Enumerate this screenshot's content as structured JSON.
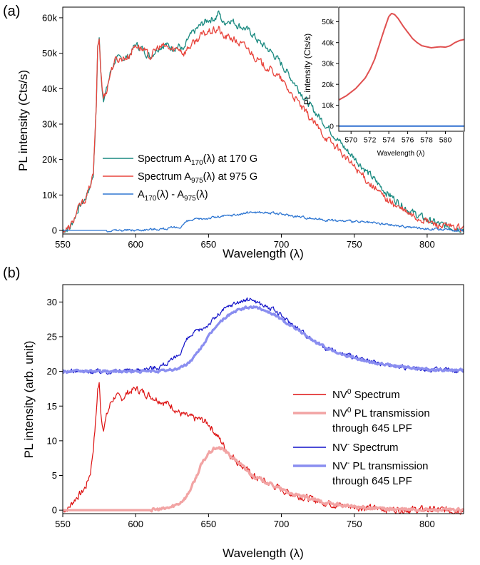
{
  "panels": {
    "a": {
      "label": "(a)"
    },
    "b": {
      "label": "(b)"
    }
  },
  "colors": {
    "teal": "#1a8a80",
    "red": "#e8443c",
    "blue": "#2e76d2",
    "dark_red": "#dd1111",
    "pink": "#f2a4a4",
    "navy": "#1010c8",
    "lavender": "#8a8ef0",
    "inset_red": "#e05050",
    "inset_blue": "#2e6fd0"
  },
  "chart_data": [
    {
      "id": "panel-a",
      "type": "line",
      "xlabel": "Wavelength (λ)",
      "ylabel": "PL intensity (Cts/s)",
      "xlim": [
        550,
        825
      ],
      "ylim": [
        -1000,
        63000
      ],
      "xticks": [
        550,
        600,
        650,
        700,
        750,
        800
      ],
      "xtick_labels": [
        "550",
        "600",
        "650",
        "700",
        "750",
        "800"
      ],
      "yticks": [
        0,
        10000,
        20000,
        30000,
        40000,
        50000,
        60000
      ],
      "ytick_labels": [
        "0",
        "10k",
        "20k",
        "30k",
        "40k",
        "50k",
        "60k"
      ],
      "legend_position": "center-left",
      "series": [
        {
          "name": "Spectrum A170(λ) at 170 G",
          "legend_parts": [
            "Spectrum A",
            "170",
            "(λ) at 170 G"
          ],
          "color": "teal",
          "x": [
            550,
            555,
            558,
            561,
            565,
            568,
            571,
            573,
            574,
            575,
            576,
            577,
            578,
            580,
            583,
            586,
            590,
            595,
            600,
            605,
            610,
            615,
            620,
            625,
            630,
            633,
            636,
            640,
            645,
            650,
            655,
            657,
            660,
            665,
            670,
            675,
            680,
            685,
            690,
            695,
            700,
            705,
            710,
            715,
            720,
            725,
            730,
            735,
            740,
            745,
            750,
            760,
            770,
            780,
            790,
            800,
            810,
            820,
            825
          ],
          "y": [
            0,
            800,
            3500,
            6500,
            8500,
            11500,
            16000,
            35000,
            52000,
            54000,
            46000,
            40000,
            37500,
            39500,
            45000,
            48000,
            48500,
            49000,
            52500,
            51000,
            49000,
            51500,
            52500,
            51500,
            52000,
            50500,
            54000,
            56000,
            58000,
            59500,
            60000,
            61500,
            58500,
            59500,
            58000,
            57000,
            55500,
            53000,
            51500,
            49500,
            47000,
            44000,
            41000,
            38000,
            35000,
            32500,
            30000,
            27500,
            25000,
            22500,
            20500,
            16000,
            11500,
            8000,
            5000,
            3000,
            1500,
            800,
            500
          ],
          "noise": 900
        },
        {
          "name": "Spectrum A975(λ) at 975 G",
          "legend_parts": [
            "Spectrum A",
            "975",
            "(λ) at 975 G"
          ],
          "color": "red",
          "x": [
            550,
            555,
            558,
            561,
            565,
            568,
            571,
            573,
            574,
            575,
            576,
            577,
            578,
            580,
            583,
            586,
            590,
            595,
            600,
            605,
            610,
            615,
            620,
            625,
            630,
            633,
            636,
            640,
            645,
            650,
            655,
            657,
            660,
            665,
            670,
            675,
            680,
            685,
            690,
            695,
            700,
            705,
            710,
            715,
            720,
            725,
            730,
            735,
            740,
            745,
            750,
            760,
            770,
            780,
            790,
            800,
            810,
            820,
            825
          ],
          "y": [
            0,
            800,
            3500,
            6500,
            8500,
            11500,
            16000,
            35000,
            52000,
            54000,
            46000,
            40000,
            37500,
            39500,
            45000,
            48000,
            48500,
            49000,
            52500,
            51000,
            49000,
            51500,
            52000,
            51000,
            51500,
            50000,
            51500,
            53000,
            55000,
            56000,
            56500,
            57000,
            54500,
            54500,
            53000,
            52000,
            50000,
            47500,
            46000,
            44500,
            42500,
            39500,
            37000,
            34000,
            31500,
            29000,
            26500,
            24500,
            22500,
            20000,
            18000,
            13500,
            9500,
            6500,
            4000,
            2500,
            1200,
            700,
            400
          ],
          "noise": 900
        },
        {
          "name": "A170(λ) - A975(λ)",
          "legend_parts": [
            "A",
            "170",
            "(λ) - A",
            "975",
            "(λ)"
          ],
          "color": "blue",
          "x": [
            550,
            580,
            600,
            620,
            630,
            635,
            640,
            650,
            660,
            670,
            680,
            690,
            700,
            710,
            720,
            730,
            740,
            750,
            760,
            770,
            780,
            790,
            800,
            810,
            825
          ],
          "y": [
            0,
            0,
            100,
            500,
            800,
            2500,
            3000,
            3500,
            4000,
            4500,
            5200,
            5000,
            4600,
            4000,
            3500,
            3000,
            2700,
            2500,
            2200,
            1800,
            1300,
            900,
            500,
            200,
            0
          ],
          "noise": 300
        }
      ]
    },
    {
      "id": "panel-a-inset",
      "type": "line",
      "xlabel": "Wavelength (λ)",
      "ylabel": "PL intensity (Cts/s)",
      "xlim": [
        568.7,
        582
      ],
      "ylim": [
        -2500,
        57000
      ],
      "xticks": [
        570,
        572,
        574,
        576,
        578,
        580
      ],
      "xtick_labels": [
        "570",
        "572",
        "574",
        "576",
        "578",
        "580"
      ],
      "yticks": [
        0,
        10000,
        20000,
        30000,
        40000,
        50000
      ],
      "ytick_labels": [
        "0",
        "10k",
        "20k",
        "30k",
        "40k",
        "50k"
      ],
      "series": [
        {
          "color": "inset_red",
          "x": [
            568.7,
            569.5,
            570.5,
            571.5,
            572,
            572.5,
            573,
            573.5,
            574,
            574.3,
            574.6,
            575,
            575.5,
            576,
            576.5,
            577,
            577.5,
            578,
            578.5,
            579,
            579.5,
            580,
            580.5,
            581,
            581.5,
            582
          ],
          "y": [
            12500,
            14500,
            18000,
            23000,
            27000,
            32000,
            39000,
            46000,
            52500,
            54000,
            53500,
            51500,
            48000,
            45000,
            42000,
            40000,
            38500,
            38000,
            37500,
            37800,
            38000,
            37800,
            38500,
            40000,
            41000,
            41500
          ]
        },
        {
          "color": "inset_blue",
          "x": [
            568.7,
            582
          ],
          "y": [
            0,
            0
          ]
        }
      ]
    },
    {
      "id": "panel-b",
      "type": "line",
      "xlabel": "Wavelength (λ)",
      "ylabel": "PL intensity (arb. unit)",
      "xlim": [
        550,
        825
      ],
      "ylim": [
        -0.5,
        32.5
      ],
      "xticks": [
        550,
        600,
        650,
        700,
        750,
        800
      ],
      "xtick_labels": [
        "550",
        "600",
        "650",
        "700",
        "750",
        "800"
      ],
      "yticks": [
        0,
        5,
        10,
        15,
        20,
        25,
        30
      ],
      "ytick_labels": [
        "0",
        "5",
        "10",
        "15",
        "20",
        "25",
        "30"
      ],
      "legend_position": "center-right",
      "series": [
        {
          "name": "NV0 Spectrum",
          "legend_lines": [
            [
              "NV",
              "0",
              " Spectrum"
            ]
          ],
          "color": "dark_red",
          "width": 1.2,
          "x": [
            550,
            554,
            557,
            560,
            563,
            566,
            569,
            571,
            573,
            574,
            575,
            576,
            577,
            578,
            580,
            583,
            586,
            590,
            595,
            600,
            605,
            610,
            615,
            620,
            625,
            630,
            635,
            640,
            645,
            650,
            655,
            660,
            665,
            670,
            675,
            680,
            685,
            690,
            695,
            700,
            705,
            710,
            715,
            720,
            730,
            740,
            750,
            760,
            770,
            780,
            800,
            825
          ],
          "y": [
            0,
            0.3,
            1.2,
            2.0,
            2.5,
            3.5,
            5.5,
            9.0,
            14.0,
            17.5,
            18.2,
            14.5,
            12.5,
            12.0,
            13.5,
            15.5,
            16.5,
            16.0,
            17.0,
            17.5,
            17.0,
            16.5,
            16.0,
            15.5,
            15.0,
            14.0,
            13.5,
            13.2,
            13.0,
            12.5,
            11.0,
            9.5,
            8.0,
            7.0,
            6.0,
            5.0,
            4.5,
            4.0,
            3.5,
            3.0,
            2.5,
            2.2,
            1.9,
            1.6,
            1.1,
            0.7,
            0.5,
            0.3,
            0.2,
            0.1,
            0.05,
            0
          ],
          "noise": 0.45
        },
        {
          "name": "NV0 PL transmission through 645 LPF",
          "legend_lines": [
            [
              "NV",
              "0",
              " PL transmission"
            ],
            [
              "through 645 LPF"
            ]
          ],
          "color": "pink",
          "width": 3.2,
          "x": [
            550,
            610,
            620,
            625,
            630,
            635,
            640,
            645,
            650,
            655,
            660,
            665,
            670,
            675,
            680,
            685,
            690,
            695,
            700,
            705,
            710,
            715,
            720,
            730,
            740,
            750,
            760,
            770,
            780,
            800,
            825
          ],
          "y": [
            0,
            0,
            0.2,
            0.5,
            1.0,
            2.0,
            4.0,
            6.5,
            8.2,
            9.0,
            8.8,
            7.8,
            7.0,
            6.0,
            5.0,
            4.5,
            4.0,
            3.5,
            3.0,
            2.5,
            2.2,
            1.9,
            1.6,
            1.1,
            0.7,
            0.5,
            0.3,
            0.2,
            0.1,
            0.05,
            0
          ],
          "noise": 0.2
        },
        {
          "name": "NV- Spectrum",
          "legend_lines": [
            [
              "NV",
              "-",
              " Spectrum"
            ]
          ],
          "color": "navy",
          "width": 1.2,
          "x": [
            550,
            580,
            600,
            615,
            625,
            630,
            635,
            640,
            645,
            650,
            655,
            660,
            665,
            670,
            675,
            680,
            685,
            690,
            695,
            700,
            705,
            710,
            715,
            720,
            725,
            730,
            740,
            750,
            760,
            770,
            780,
            790,
            800,
            810,
            825
          ],
          "y": [
            20,
            20,
            20.2,
            20.6,
            21.5,
            22.5,
            24.5,
            25.5,
            26.0,
            26.8,
            27.8,
            28.8,
            29.5,
            30.0,
            30.2,
            30.4,
            29.8,
            29.3,
            28.8,
            28.0,
            27.2,
            26.4,
            25.6,
            24.8,
            24.1,
            23.5,
            22.6,
            22.0,
            21.4,
            21.0,
            20.7,
            20.5,
            20.3,
            20.2,
            20.1
          ],
          "noise": 0.3
        },
        {
          "name": "NV- PL transmission through 645 LPF",
          "legend_lines": [
            [
              "NV",
              "-",
              " PL transmission"
            ],
            [
              "through 645 LPF"
            ]
          ],
          "color": "lavender",
          "width": 3.2,
          "x": [
            550,
            610,
            620,
            625,
            630,
            635,
            640,
            645,
            650,
            655,
            660,
            665,
            670,
            675,
            680,
            685,
            690,
            695,
            700,
            705,
            710,
            715,
            720,
            725,
            730,
            740,
            750,
            760,
            770,
            780,
            790,
            800,
            810,
            825
          ],
          "y": [
            20,
            20,
            20.1,
            20.2,
            20.5,
            21.0,
            22.0,
            23.5,
            25.0,
            26.5,
            27.5,
            28.3,
            28.8,
            29.1,
            29.3,
            29.1,
            28.7,
            28.2,
            27.5,
            26.8,
            26.1,
            25.4,
            24.7,
            24.0,
            23.5,
            22.6,
            22.0,
            21.4,
            21.0,
            20.7,
            20.5,
            20.3,
            20.2,
            20.1
          ],
          "noise": 0.15
        }
      ]
    }
  ]
}
